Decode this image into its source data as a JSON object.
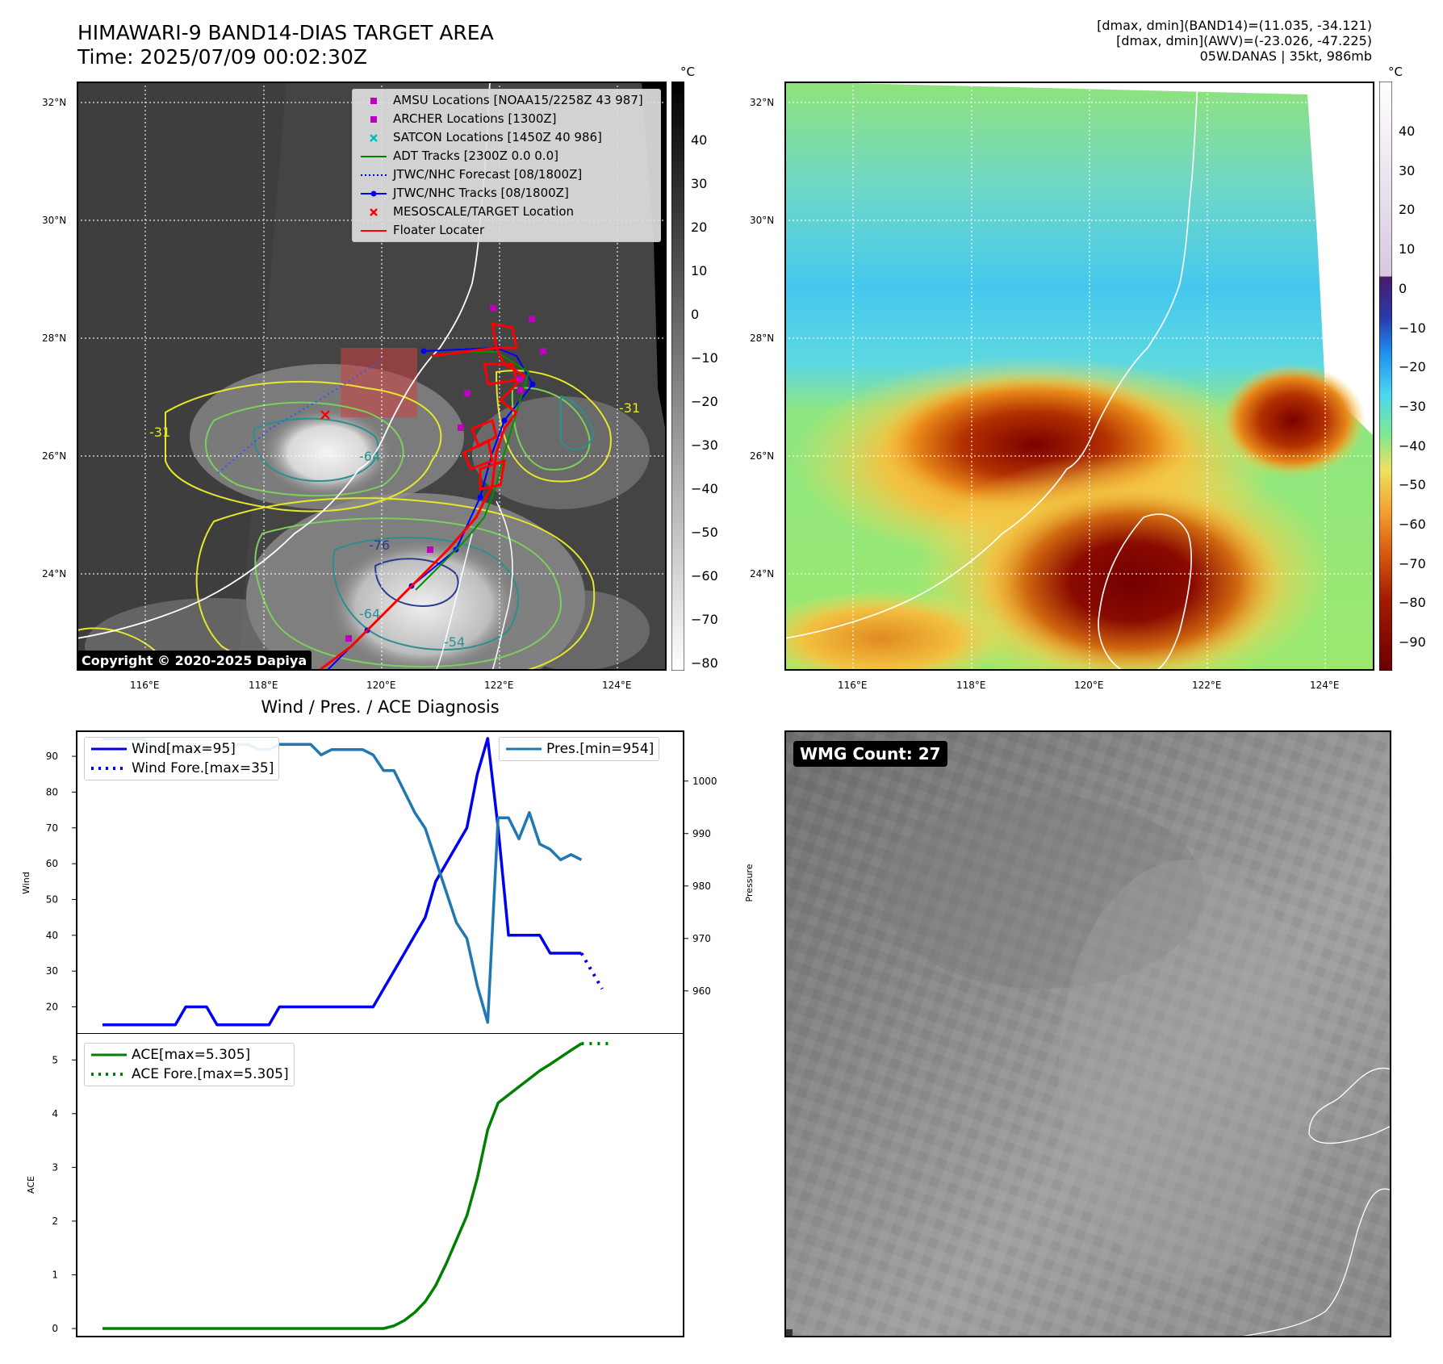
{
  "header": {
    "title_line1": "HIMAWARI-9 BAND14-DIAS TARGET AREA",
    "title_line2": "Time: 2025/07/09 00:02:30Z",
    "right_line1": "[dmax, dmin](BAND14)=(11.035, -34.121)",
    "right_line2": "[dmax, dmin](AWV)=(-23.026, -47.225)",
    "right_line3": "05W.DANAS | 35kt, 986mb"
  },
  "map_ticks": {
    "lat": [
      "32°N",
      "30°N",
      "28°N",
      "26°N",
      "24°N"
    ],
    "lon": [
      "116°E",
      "118°E",
      "120°E",
      "122°E",
      "124°E"
    ]
  },
  "colorbar_left": {
    "unit": "°C",
    "ticks": [
      "40",
      "30",
      "20",
      "10",
      "0",
      "−10",
      "−20",
      "−30",
      "−40",
      "−50",
      "−60",
      "−70",
      "−80"
    ]
  },
  "colorbar_right": {
    "unit": "°C",
    "ticks": [
      "40",
      "30",
      "20",
      "10",
      "0",
      "−10",
      "−20",
      "−30",
      "−40",
      "−50",
      "−60",
      "−70",
      "−80",
      "−90"
    ]
  },
  "legend": {
    "items": [
      {
        "label": "AMSU Locations [NOAA15/2258Z 43 987]",
        "color": "#bf00bf",
        "symbol": "square"
      },
      {
        "label": "ARCHER Locations [1300Z]",
        "color": "#bf00bf",
        "symbol": "square"
      },
      {
        "label": "SATCON Locations [1450Z 40 986]",
        "color": "#00bfbf",
        "symbol": "x"
      },
      {
        "label": "ADT Tracks [2300Z 0.0 0.0]",
        "color": "#008000",
        "symbol": "line"
      },
      {
        "label": "JTWC/NHC Forecast [08/1800Z]",
        "color": "#0000ff",
        "symbol": "dotted"
      },
      {
        "label": "JTWC/NHC Tracks [08/1800Z]",
        "color": "#0000ff",
        "symbol": "line-dot"
      },
      {
        "label": "MESOSCALE/TARGET Location",
        "color": "#ff0000",
        "symbol": "x"
      },
      {
        "label": "Floater Locater",
        "color": "#ff0000",
        "symbol": "line"
      }
    ]
  },
  "contour_labels": [
    "-31",
    "-76",
    "-64",
    "-54",
    "-64",
    "-31"
  ],
  "copyright": "Copyright © 2020-2025 Dapiya",
  "wmg_count": "WMG Count: 27",
  "chart_data": [
    {
      "type": "line",
      "title": "Wind / Pres. / ACE Diagnosis",
      "ylabel": "Wind",
      "y2label": "Pressure",
      "ylim": [
        12,
        97
      ],
      "y2lim": [
        951.5,
        1009.5
      ],
      "yticks": [
        20,
        30,
        40,
        50,
        60,
        70,
        80,
        90
      ],
      "y2ticks": [
        960,
        970,
        980,
        990,
        1000
      ],
      "legend_left": [
        "Wind[max=95]",
        "Wind Fore.[max=35]"
      ],
      "legend_right": [
        "Pres.[min=954]"
      ],
      "series": [
        {
          "name": "Wind[max=95]",
          "color": "#0000ee",
          "style": "solid",
          "values": [
            15,
            15,
            15,
            15,
            15,
            15,
            15,
            15,
            20,
            20,
            20,
            15,
            15,
            15,
            15,
            15,
            15,
            20,
            20,
            20,
            20,
            20,
            20,
            20,
            20,
            20,
            20,
            25,
            30,
            35,
            40,
            45,
            55,
            60,
            65,
            70,
            85,
            95,
            70,
            40,
            40,
            40,
            40,
            35,
            35,
            35,
            35
          ]
        },
        {
          "name": "Wind Fore.[max=35]",
          "color": "#0000ee",
          "style": "dotted",
          "x_start": 46,
          "values": [
            35,
            30,
            25
          ]
        },
        {
          "name": "Pres.[min=954]",
          "color": "#1f77b4",
          "style": "solid",
          "axis": "right",
          "values": [
            1008,
            1008,
            1008,
            1008,
            1008,
            1006,
            1006,
            1006,
            1006,
            1006,
            1006,
            1006,
            1006,
            1007,
            1007,
            1006,
            1006,
            1007,
            1007,
            1007,
            1007,
            1005,
            1006,
            1006,
            1006,
            1006,
            1005,
            1002,
            1002,
            998,
            994,
            991,
            985,
            979,
            973,
            970,
            961,
            954,
            993,
            993,
            989,
            994,
            988,
            987,
            985,
            986,
            985
          ]
        }
      ]
    },
    {
      "type": "line",
      "ylabel": "ACE",
      "ylim": [
        -0.15,
        5.5
      ],
      "yticks": [
        0,
        1,
        2,
        3,
        4,
        5
      ],
      "legend": [
        "ACE[max=5.305]",
        "ACE Fore.[max=5.305]"
      ],
      "series": [
        {
          "name": "ACE[max=5.305]",
          "color": "#008000",
          "style": "solid",
          "values": [
            0,
            0,
            0,
            0,
            0,
            0,
            0,
            0,
            0,
            0,
            0,
            0,
            0,
            0,
            0,
            0,
            0,
            0,
            0,
            0,
            0,
            0,
            0,
            0,
            0,
            0,
            0,
            0,
            0.05,
            0.15,
            0.3,
            0.5,
            0.8,
            1.2,
            1.65,
            2.1,
            2.8,
            3.7,
            4.2,
            4.35,
            4.5,
            4.65,
            4.8,
            4.92,
            5.05,
            5.18,
            5.305
          ]
        },
        {
          "name": "ACE Fore.[max=5.305]",
          "color": "#008000",
          "style": "dotted",
          "x_start": 46,
          "values": [
            5.305,
            5.305,
            5.305,
            5.305
          ]
        }
      ]
    }
  ]
}
